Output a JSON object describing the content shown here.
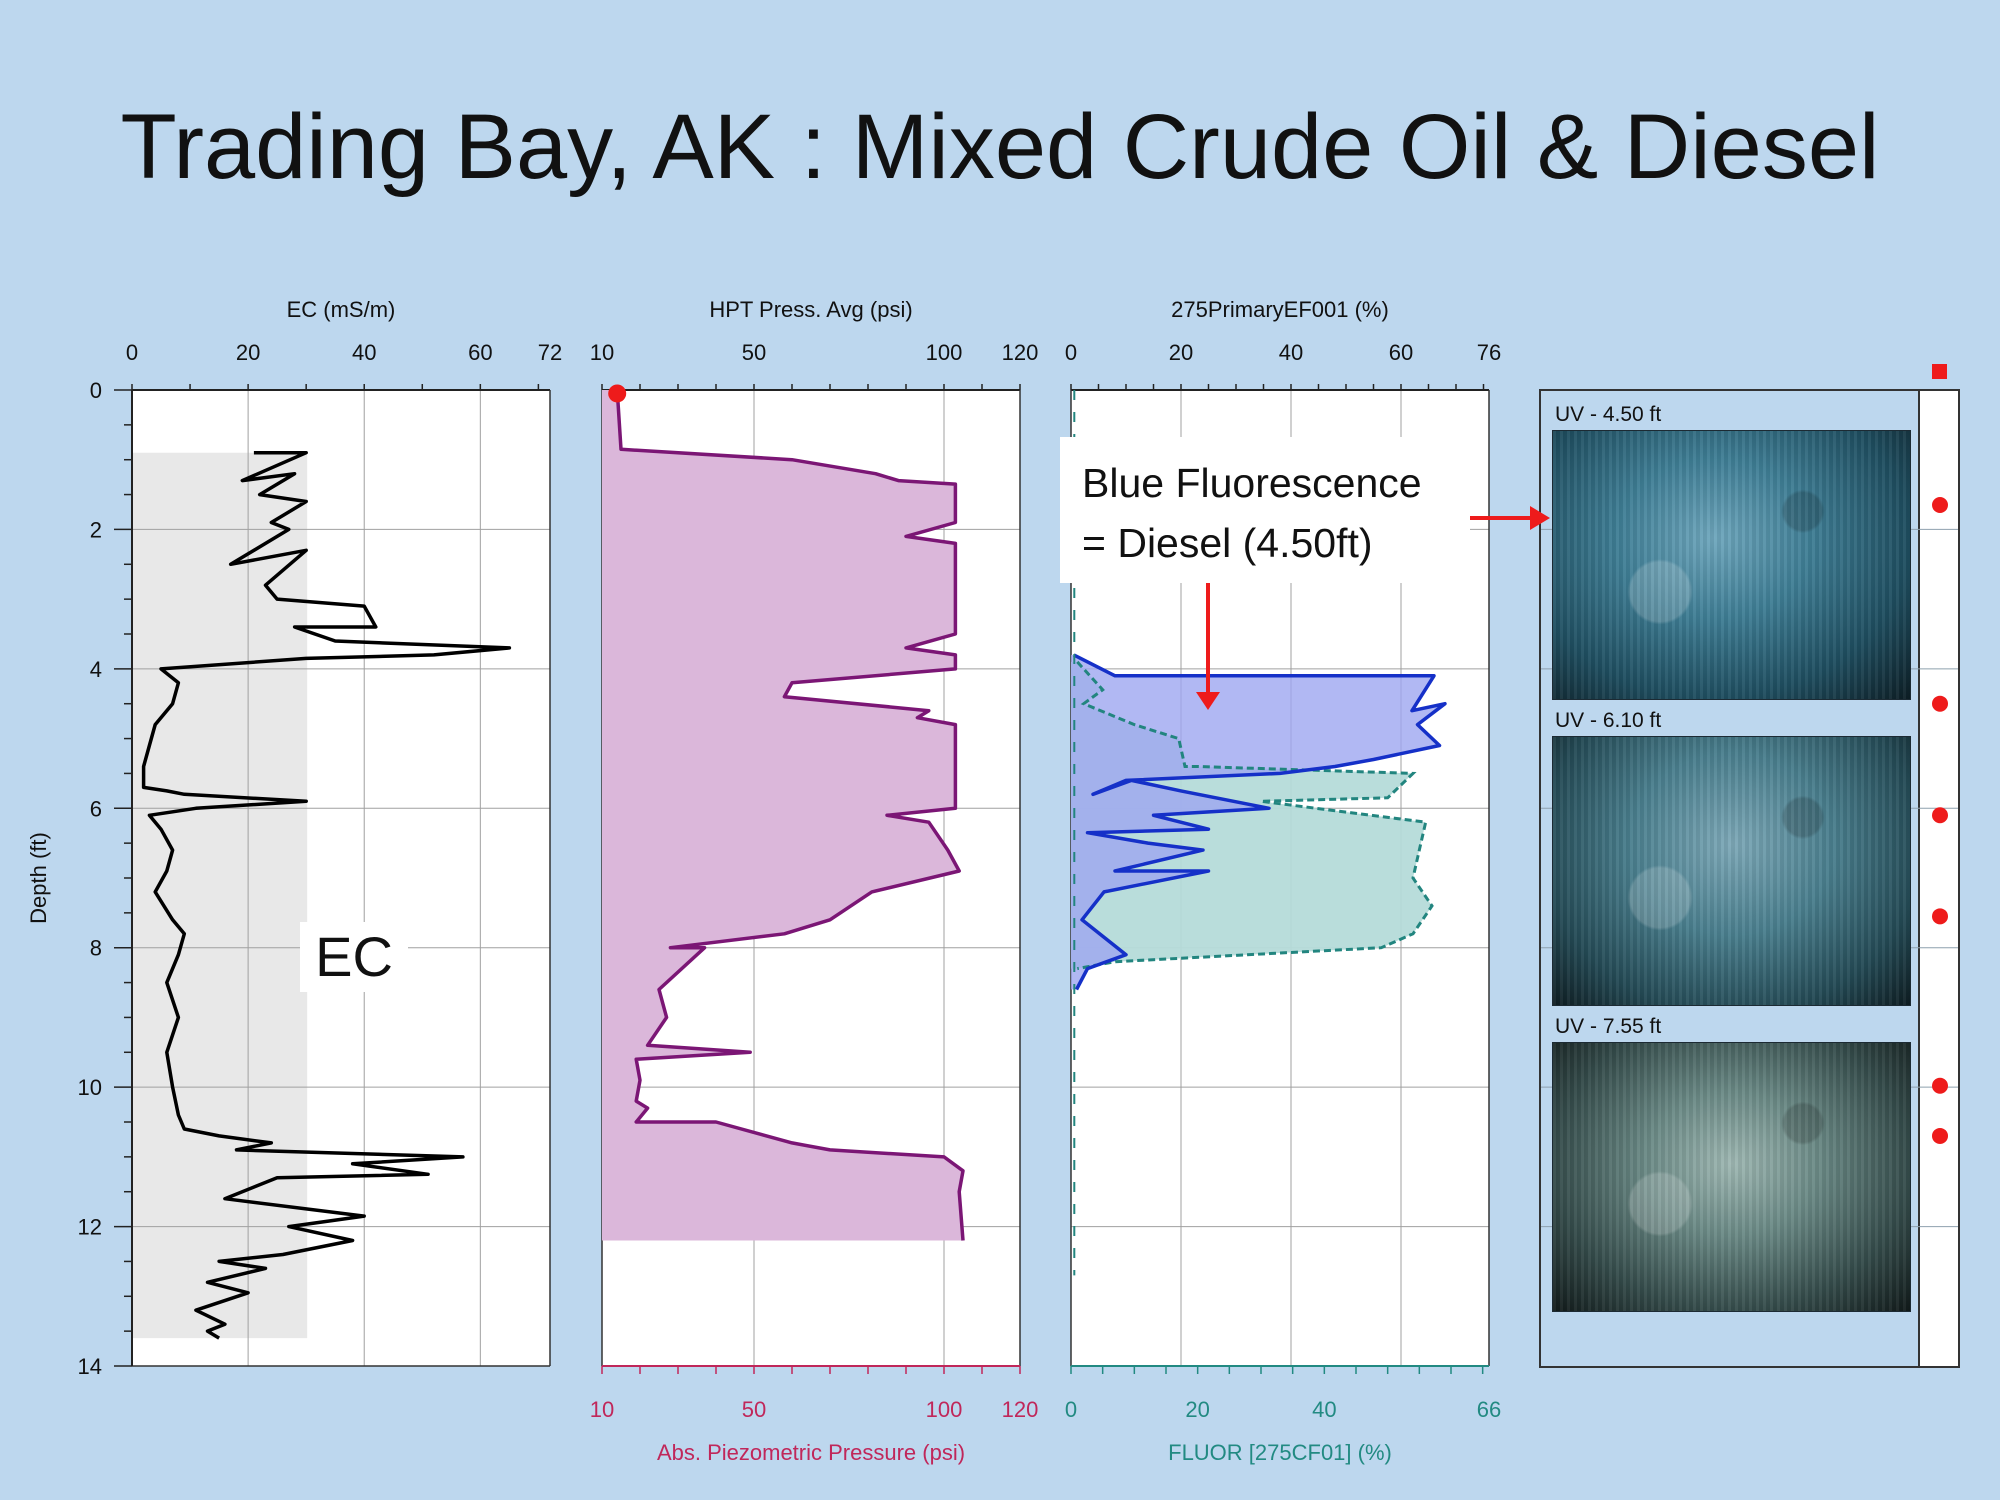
{
  "slide": {
    "title": "Trading Bay, AK : Mixed Crude Oil & Diesel"
  },
  "colors": {
    "background": "#bdd7ee",
    "ec_line": "#000000",
    "ec_fill": "#e8e8e8",
    "hpt_line": "#7b1675",
    "hpt_fill": "#dbb7da",
    "fluor_primary_line": "#1530c8",
    "fluor_primary_fill": "#9ea6f0",
    "fluor_secondary_line": "#22857f",
    "fluor_secondary_fill": "#b5dbd9",
    "bottom_axis_pressure": "#c0275a",
    "bottom_axis_fluor": "#228a82",
    "marker": "#ee1b1b"
  },
  "annotations": {
    "callout_line1": "Blue Fluorescence",
    "callout_line2": "= Diesel (4.50ft)",
    "ec_label": "EC"
  },
  "photos": [
    {
      "label": "UV - 4.50 ft",
      "depth": 4.5
    },
    {
      "label": "UV - 6.10 ft",
      "depth": 6.1
    },
    {
      "label": "UV - 7.55 ft",
      "depth": 7.55
    }
  ],
  "chart_data": [
    {
      "type": "line",
      "title": "EC (mS/m)",
      "ylabel": "Depth (ft)",
      "xlim": [
        0,
        72
      ],
      "x_ticks": [
        0,
        20,
        40,
        60,
        72
      ],
      "ylim": [
        0,
        14
      ],
      "y_ticks": [
        0,
        2,
        4,
        6,
        8,
        10,
        12,
        14
      ],
      "y_inverted": true,
      "grid": true,
      "fill_range": [
        0.9,
        13.6
      ],
      "series": [
        {
          "points": [
            [
              21,
              0.9
            ],
            [
              30,
              0.9
            ],
            [
              19,
              1.3
            ],
            [
              28,
              1.2
            ],
            [
              22,
              1.5
            ],
            [
              30,
              1.6
            ],
            [
              24,
              1.9
            ],
            [
              27,
              2.0
            ],
            [
              17,
              2.5
            ],
            [
              30,
              2.3
            ],
            [
              23,
              2.8
            ],
            [
              25,
              3.0
            ],
            [
              40,
              3.1
            ],
            [
              42,
              3.4
            ],
            [
              28,
              3.4
            ],
            [
              35,
              3.6
            ],
            [
              65,
              3.7
            ],
            [
              52,
              3.8
            ],
            [
              30,
              3.85
            ],
            [
              5,
              4.0
            ],
            [
              8,
              4.2
            ],
            [
              7,
              4.5
            ],
            [
              4,
              4.8
            ],
            [
              3,
              5.1
            ],
            [
              2,
              5.4
            ],
            [
              2,
              5.7
            ],
            [
              6,
              5.75
            ],
            [
              9,
              5.8
            ],
            [
              30,
              5.9
            ],
            [
              11,
              6.0
            ],
            [
              3,
              6.1
            ],
            [
              5,
              6.3
            ],
            [
              7,
              6.6
            ],
            [
              6,
              6.9
            ],
            [
              4,
              7.2
            ],
            [
              7,
              7.6
            ],
            [
              9,
              7.8
            ],
            [
              8,
              8.1
            ],
            [
              6,
              8.5
            ],
            [
              8,
              9.0
            ],
            [
              6,
              9.5
            ],
            [
              7,
              10.0
            ],
            [
              8,
              10.4
            ],
            [
              9,
              10.6
            ],
            [
              15,
              10.7
            ],
            [
              24,
              10.8
            ],
            [
              18,
              10.9
            ],
            [
              57,
              11.0
            ],
            [
              38,
              11.1
            ],
            [
              51,
              11.25
            ],
            [
              25,
              11.3
            ],
            [
              16,
              11.6
            ],
            [
              40,
              11.85
            ],
            [
              27,
              12.0
            ],
            [
              38,
              12.2
            ],
            [
              26,
              12.4
            ],
            [
              15,
              12.5
            ],
            [
              23,
              12.6
            ],
            [
              13,
              12.8
            ],
            [
              20,
              12.95
            ],
            [
              11,
              13.2
            ],
            [
              16,
              13.4
            ],
            [
              13,
              13.5
            ],
            [
              15,
              13.6
            ]
          ]
        }
      ]
    },
    {
      "type": "area",
      "title": "HPT Press. Avg (psi)",
      "xlabel_bottom": "Abs. Piezometric Pressure (psi)",
      "xlim": [
        10,
        120
      ],
      "x_ticks": [
        10,
        50,
        100,
        120
      ],
      "ylim": [
        0,
        14
      ],
      "y_inverted": true,
      "grid": true,
      "series": [
        {
          "points": [
            [
              14,
              0
            ],
            [
              15,
              0.85
            ],
            [
              60,
              1.0
            ],
            [
              82,
              1.2
            ],
            [
              88,
              1.3
            ],
            [
              103,
              1.35
            ],
            [
              103,
              1.9
            ],
            [
              90,
              2.1
            ],
            [
              103,
              2.2
            ],
            [
              103,
              3.5
            ],
            [
              90,
              3.7
            ],
            [
              103,
              3.8
            ],
            [
              103,
              4.0
            ],
            [
              60,
              4.2
            ],
            [
              58,
              4.4
            ],
            [
              96,
              4.6
            ],
            [
              93,
              4.7
            ],
            [
              103,
              4.8
            ],
            [
              103,
              6.0
            ],
            [
              85,
              6.1
            ],
            [
              96,
              6.2
            ],
            [
              101,
              6.6
            ],
            [
              104,
              6.9
            ],
            [
              81,
              7.2
            ],
            [
              70,
              7.6
            ],
            [
              58,
              7.8
            ],
            [
              28,
              8.0
            ],
            [
              37,
              8.0
            ],
            [
              25,
              8.6
            ],
            [
              27,
              9.0
            ],
            [
              22,
              9.4
            ],
            [
              49,
              9.5
            ],
            [
              19,
              9.6
            ],
            [
              20,
              9.9
            ],
            [
              19,
              10.2
            ],
            [
              22,
              10.3
            ],
            [
              19,
              10.5
            ],
            [
              40,
              10.5
            ],
            [
              60,
              10.8
            ],
            [
              70,
              10.9
            ],
            [
              100,
              11.0
            ],
            [
              105,
              11.2
            ],
            [
              104,
              11.5
            ],
            [
              105,
              12.2
            ]
          ]
        }
      ],
      "marker": {
        "x": 14,
        "depth": 0.05
      }
    },
    {
      "type": "area",
      "title": "275PrimaryEF001 (%)",
      "xlabel_bottom": "FLUOR [275CF01] (%)",
      "xlim_top": [
        0,
        76
      ],
      "x_ticks_top": [
        0,
        20,
        40,
        60,
        76
      ],
      "xlim_bottom": [
        0,
        66
      ],
      "x_ticks_bottom": [
        0,
        20,
        40,
        66
      ],
      "ylim": [
        0,
        14
      ],
      "y_inverted": true,
      "grid": true,
      "series": [
        {
          "name": "275PrimaryEF001 (%)",
          "points": [
            [
              0.5,
              3.8
            ],
            [
              8,
              4.1
            ],
            [
              66,
              4.1
            ],
            [
              62,
              4.6
            ],
            [
              68,
              4.5
            ],
            [
              63,
              4.8
            ],
            [
              67,
              5.1
            ],
            [
              55,
              5.3
            ],
            [
              48,
              5.4
            ],
            [
              38,
              5.5
            ],
            [
              10,
              5.6
            ],
            [
              4,
              5.8
            ],
            [
              11,
              5.6
            ],
            [
              20,
              5.75
            ],
            [
              36,
              6.0
            ],
            [
              15,
              6.1
            ],
            [
              25,
              6.3
            ],
            [
              3,
              6.35
            ],
            [
              14,
              6.5
            ],
            [
              24,
              6.6
            ],
            [
              8,
              6.9
            ],
            [
              25,
              6.9
            ],
            [
              6,
              7.2
            ],
            [
              2,
              7.6
            ],
            [
              10,
              8.1
            ],
            [
              3,
              8.3
            ],
            [
              1,
              8.6
            ]
          ]
        },
        {
          "name": "FLUOR [275CF01] (%)",
          "points": [
            [
              1,
              3.9
            ],
            [
              5,
              4.3
            ],
            [
              2,
              4.5
            ],
            [
              10,
              4.8
            ],
            [
              17,
              5.0
            ],
            [
              18,
              5.4
            ],
            [
              20,
              5.4
            ],
            [
              54,
              5.5
            ],
            [
              50,
              5.85
            ],
            [
              30,
              5.9
            ],
            [
              56,
              6.2
            ],
            [
              55,
              6.6
            ],
            [
              54,
              7.0
            ],
            [
              57,
              7.4
            ],
            [
              54,
              7.8
            ],
            [
              49,
              8.0
            ],
            [
              7,
              8.2
            ],
            [
              1,
              8.3
            ]
          ]
        }
      ]
    }
  ]
}
